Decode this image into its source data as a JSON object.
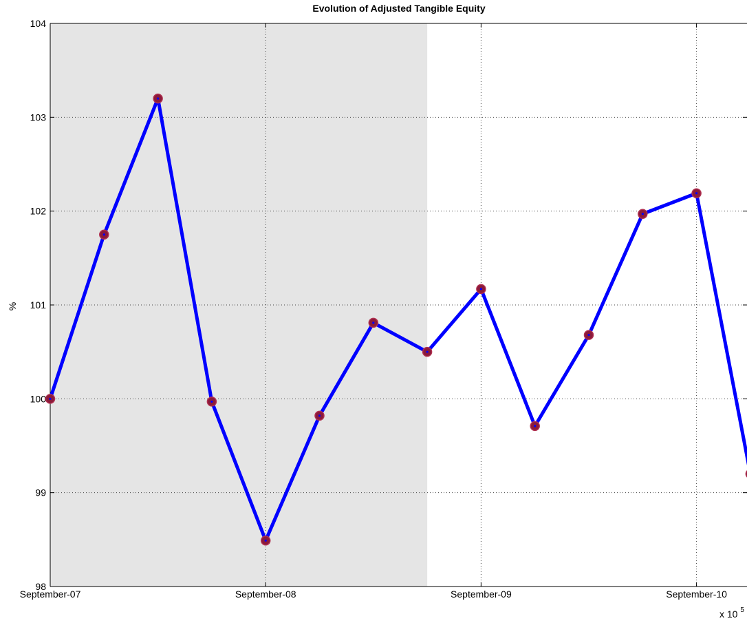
{
  "chart_data": {
    "type": "line",
    "title": "Evolution of Adjusted Tangible Equity",
    "xlabel": "",
    "ylabel": "%",
    "x": [
      "2007-09",
      "2007-12",
      "2008-03",
      "2008-06",
      "2008-09",
      "2008-12",
      "2009-03",
      "2009-06",
      "2009-09",
      "2009-12",
      "2010-03",
      "2010-06",
      "2010-09",
      "2010-12"
    ],
    "series": [
      {
        "values": [
          100.0,
          101.75,
          103.2,
          99.97,
          98.49,
          99.82,
          100.81,
          100.5,
          101.17,
          99.71,
          100.68,
          101.97,
          102.19,
          99.2
        ]
      }
    ],
    "x_tick_labels": [
      "September-07",
      "September-08",
      "September-09",
      "September-10"
    ],
    "x_exponent_label": "x 10",
    "x_exponent_power": "5",
    "ylim": [
      98,
      104
    ],
    "yticks": [
      98,
      99,
      100,
      101,
      102,
      103,
      104
    ],
    "shaded_region": {
      "from": "2007-09",
      "to": "2009-06",
      "color": "#e5e5e5"
    },
    "grid": true,
    "colors": {
      "line": "#0000ff",
      "marker_fill": "#8b1a3a",
      "marker_edge": "#b03050",
      "shade": "#e5e5e5"
    }
  }
}
